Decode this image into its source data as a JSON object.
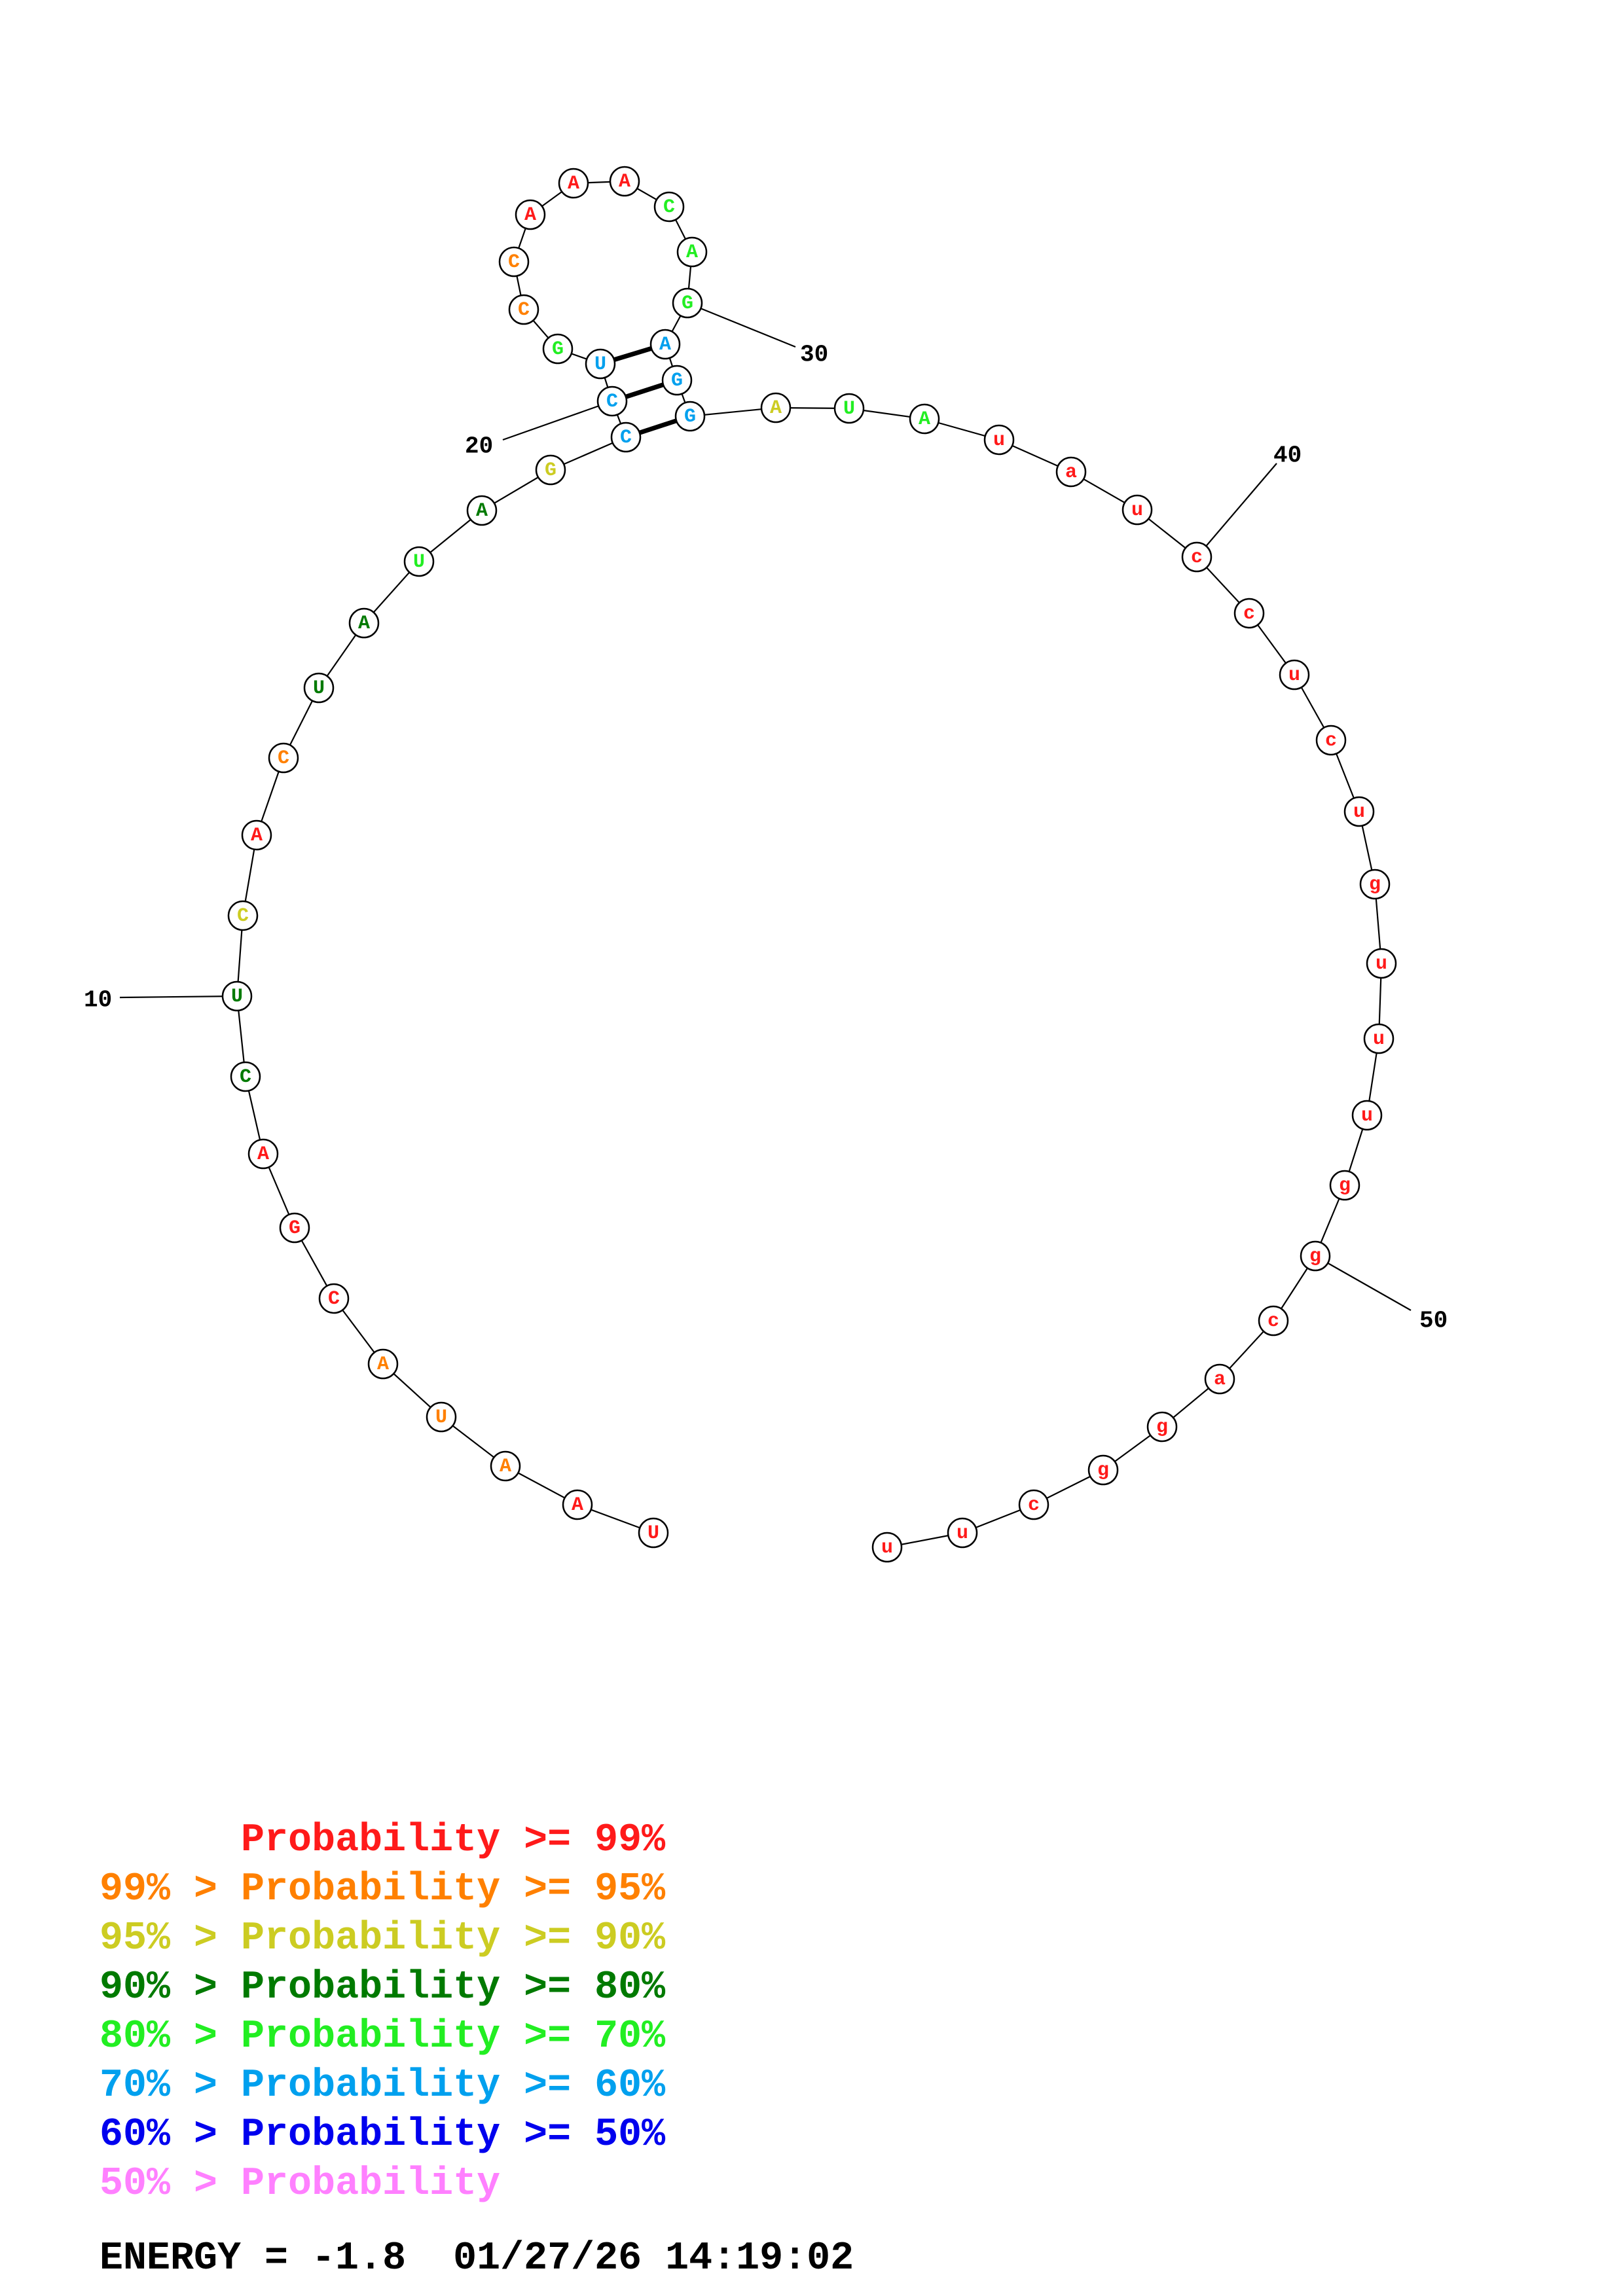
{
  "colors": {
    "red": "#ff1a1a",
    "orange": "#ff8000",
    "yellow": "#cccc22",
    "darkgreen": "#007a00",
    "green": "#22ee22",
    "cyan": "#00a0ee",
    "blue": "#0000ee",
    "pink": "#ff80ff"
  },
  "nucleotides": [
    {
      "n": 1,
      "base": "U",
      "color": "red"
    },
    {
      "n": 2,
      "base": "A",
      "color": "red"
    },
    {
      "n": 3,
      "base": "A",
      "color": "orange"
    },
    {
      "n": 4,
      "base": "U",
      "color": "orange"
    },
    {
      "n": 5,
      "base": "A",
      "color": "orange"
    },
    {
      "n": 6,
      "base": "C",
      "color": "red"
    },
    {
      "n": 7,
      "base": "G",
      "color": "red"
    },
    {
      "n": 8,
      "base": "A",
      "color": "red"
    },
    {
      "n": 9,
      "base": "C",
      "color": "darkgreen"
    },
    {
      "n": 10,
      "base": "U",
      "color": "darkgreen"
    },
    {
      "n": 11,
      "base": "C",
      "color": "yellow"
    },
    {
      "n": 12,
      "base": "A",
      "color": "red"
    },
    {
      "n": 13,
      "base": "C",
      "color": "orange"
    },
    {
      "n": 14,
      "base": "U",
      "color": "darkgreen"
    },
    {
      "n": 15,
      "base": "A",
      "color": "darkgreen"
    },
    {
      "n": 16,
      "base": "U",
      "color": "green"
    },
    {
      "n": 17,
      "base": "A",
      "color": "darkgreen"
    },
    {
      "n": 18,
      "base": "G",
      "color": "yellow"
    },
    {
      "n": 19,
      "base": "C",
      "color": "cyan"
    },
    {
      "n": 20,
      "base": "C",
      "color": "cyan"
    },
    {
      "n": 21,
      "base": "U",
      "color": "cyan"
    },
    {
      "n": 22,
      "base": "G",
      "color": "green"
    },
    {
      "n": 23,
      "base": "C",
      "color": "orange"
    },
    {
      "n": 24,
      "base": "C",
      "color": "orange"
    },
    {
      "n": 25,
      "base": "A",
      "color": "red"
    },
    {
      "n": 26,
      "base": "A",
      "color": "red"
    },
    {
      "n": 27,
      "base": "A",
      "color": "red"
    },
    {
      "n": 28,
      "base": "C",
      "color": "green"
    },
    {
      "n": 29,
      "base": "A",
      "color": "green"
    },
    {
      "n": 30,
      "base": "G",
      "color": "green"
    },
    {
      "n": 31,
      "base": "A",
      "color": "cyan"
    },
    {
      "n": 32,
      "base": "G",
      "color": "cyan"
    },
    {
      "n": 33,
      "base": "G",
      "color": "cyan"
    },
    {
      "n": 34,
      "base": "A",
      "color": "yellow"
    },
    {
      "n": 35,
      "base": "U",
      "color": "green"
    },
    {
      "n": 36,
      "base": "A",
      "color": "green"
    },
    {
      "n": 37,
      "base": "u",
      "color": "red"
    },
    {
      "n": 38,
      "base": "a",
      "color": "red"
    },
    {
      "n": 39,
      "base": "u",
      "color": "red"
    },
    {
      "n": 40,
      "base": "c",
      "color": "red"
    },
    {
      "n": 41,
      "base": "c",
      "color": "red"
    },
    {
      "n": 42,
      "base": "u",
      "color": "red"
    },
    {
      "n": 43,
      "base": "c",
      "color": "red"
    },
    {
      "n": 44,
      "base": "u",
      "color": "red"
    },
    {
      "n": 45,
      "base": "g",
      "color": "red"
    },
    {
      "n": 46,
      "base": "u",
      "color": "red"
    },
    {
      "n": 47,
      "base": "u",
      "color": "red"
    },
    {
      "n": 48,
      "base": "u",
      "color": "red"
    },
    {
      "n": 49,
      "base": "g",
      "color": "red"
    },
    {
      "n": 50,
      "base": "g",
      "color": "red"
    },
    {
      "n": 51,
      "base": "c",
      "color": "red"
    },
    {
      "n": 52,
      "base": "a",
      "color": "red"
    },
    {
      "n": 53,
      "base": "g",
      "color": "red"
    },
    {
      "n": 54,
      "base": "g",
      "color": "red"
    },
    {
      "n": 55,
      "base": "c",
      "color": "red"
    },
    {
      "n": 56,
      "base": "u",
      "color": "red"
    },
    {
      "n": 57,
      "base": "u",
      "color": "red"
    }
  ],
  "pairs": [
    [
      19,
      33
    ],
    [
      20,
      32
    ],
    [
      21,
      31
    ]
  ],
  "tick_labels": [
    {
      "n": 10,
      "label": "10"
    },
    {
      "n": 20,
      "label": "20"
    },
    {
      "n": 30,
      "label": "30"
    },
    {
      "n": 40,
      "label": "40"
    },
    {
      "n": 50,
      "label": "50"
    }
  ],
  "legend": [
    {
      "prefix": "",
      "text": "Probability >= 99%",
      "color": "red"
    },
    {
      "prefix": "99% > ",
      "text": "Probability >= 95%",
      "color": "orange"
    },
    {
      "prefix": "95% > ",
      "text": "Probability >= 90%",
      "color": "yellow"
    },
    {
      "prefix": "90% > ",
      "text": "Probability >= 80%",
      "color": "darkgreen"
    },
    {
      "prefix": "80% > ",
      "text": "Probability >= 70%",
      "color": "green"
    },
    {
      "prefix": "70% > ",
      "text": "Probability >= 60%",
      "color": "cyan"
    },
    {
      "prefix": "60% > ",
      "text": "Probability >= 50%",
      "color": "blue"
    },
    {
      "prefix": "50% > ",
      "text": "Probability",
      "color": "pink"
    }
  ],
  "footer": "ENERGY = -1.8  01/27/26 14:19:02"
}
